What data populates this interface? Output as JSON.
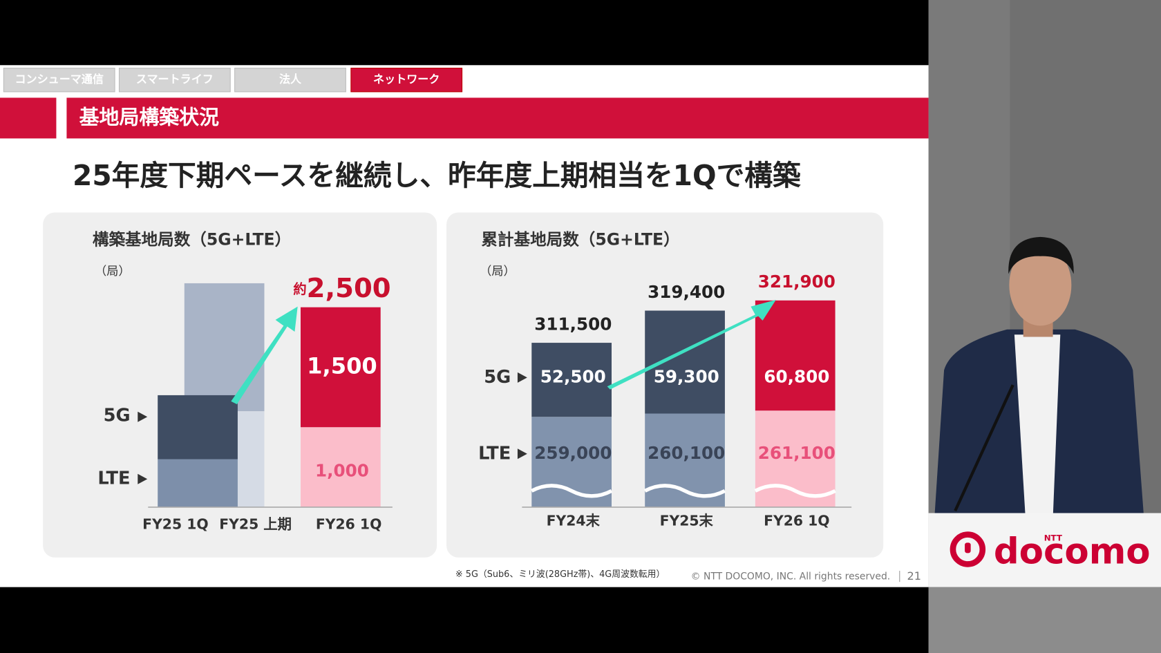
{
  "tabs": [
    "コンシューマ通信",
    "スマートライフ",
    "法人",
    "ネットワーク"
  ],
  "section_title": "基地局構築状況",
  "headline": "25年度下期ペースを継続し、昨年度上期相当を1Qで構築",
  "chart_data": [
    {
      "type": "stacked-bar",
      "title": "構築基地局数（5G+LTE）",
      "unit": "（局）",
      "categories": [
        "FY25 1Q",
        "FY25 上期",
        "FY26 1Q"
      ],
      "series": [
        {
          "name": "LTE",
          "colors": [
            "#7d8faa",
            "#d5dbe5",
            "#fbbdca"
          ],
          "label_color": "#e8507a",
          "values": [
            600,
            1200,
            1000
          ],
          "value_labels": [
            null,
            null,
            "1,000"
          ]
        },
        {
          "name": "5G",
          "colors": [
            "#3f4d63",
            "#a9b4c7",
            "#d0103a"
          ],
          "label_color": "#ffffff",
          "values": [
            800,
            1600,
            1500
          ],
          "value_labels": [
            null,
            null,
            "1,500"
          ]
        }
      ],
      "totals": [
        null,
        null,
        2500
      ],
      "total_labels": [
        null,
        null,
        "2,500"
      ],
      "total_prefix": "約",
      "total_color": "#c8102e"
    },
    {
      "type": "broken-stacked-bar",
      "title": "累計基地局数（5G+LTE）",
      "unit": "（局）",
      "categories": [
        "FY24末",
        "FY25末",
        "FY26 1Q"
      ],
      "series": [
        {
          "name": "LTE",
          "colors": [
            "#8193ad",
            "#8193ad",
            "#fbbdca"
          ],
          "label_colors": [
            "#3a4457",
            "#3a4457",
            "#e8507a"
          ],
          "values": [
            259000,
            260100,
            261100
          ],
          "value_labels": [
            "259,000",
            "260,100",
            "261,100"
          ]
        },
        {
          "name": "5G",
          "colors": [
            "#3f4d63",
            "#3f4d63",
            "#d0103a"
          ],
          "label_colors": [
            "#ffffff",
            "#ffffff",
            "#ffffff"
          ],
          "values": [
            52500,
            59300,
            60800
          ],
          "value_labels": [
            "52,500",
            "59,300",
            "60,800"
          ]
        }
      ],
      "totals": [
        311500,
        319400,
        321900
      ],
      "total_labels": [
        "311,500",
        "319,400",
        "321,900"
      ],
      "total_colors": [
        "#222222",
        "#222222",
        "#c8102e"
      ]
    }
  ],
  "footnote": "※ 5G（Sub6、ミリ波(28GHz帯)、4G周波数転用）",
  "copyright": "© NTT DOCOMO, INC.  All rights reserved.",
  "page_number": "21",
  "logo": {
    "brand": "docomo",
    "parent": "NTT"
  }
}
